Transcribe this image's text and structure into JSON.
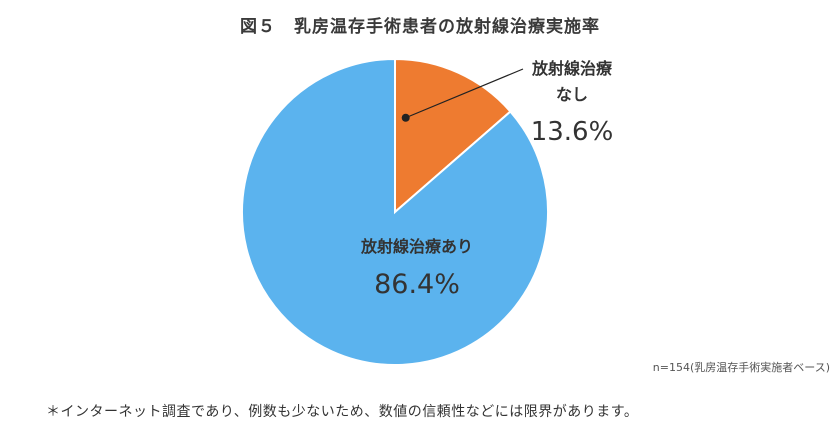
{
  "figure": {
    "title": "図５　乳房温存手術患者の放射線治療実施率",
    "note": "n=154(乳房温存手術実施者ベース)",
    "footnote": "＊インターネット調査であり、例数も少ないため、数値の信頼性などには限界があります。"
  },
  "chart_data": {
    "type": "pie",
    "title": "図５　乳房温存手術患者の放射線治療実施率",
    "slices": [
      {
        "label_lines": [
          "放射線治療",
          "なし"
        ],
        "value": 13.6,
        "value_label": "13.6%",
        "color": "#ee7b30"
      },
      {
        "label_lines": [
          "放射線治療あり"
        ],
        "value": 86.4,
        "value_label": "86.4%",
        "color": "#5bb3ee"
      }
    ],
    "start": "12 o'clock",
    "direction": "clockwise",
    "legend": "none",
    "data_labels": "on-slice and callout"
  }
}
